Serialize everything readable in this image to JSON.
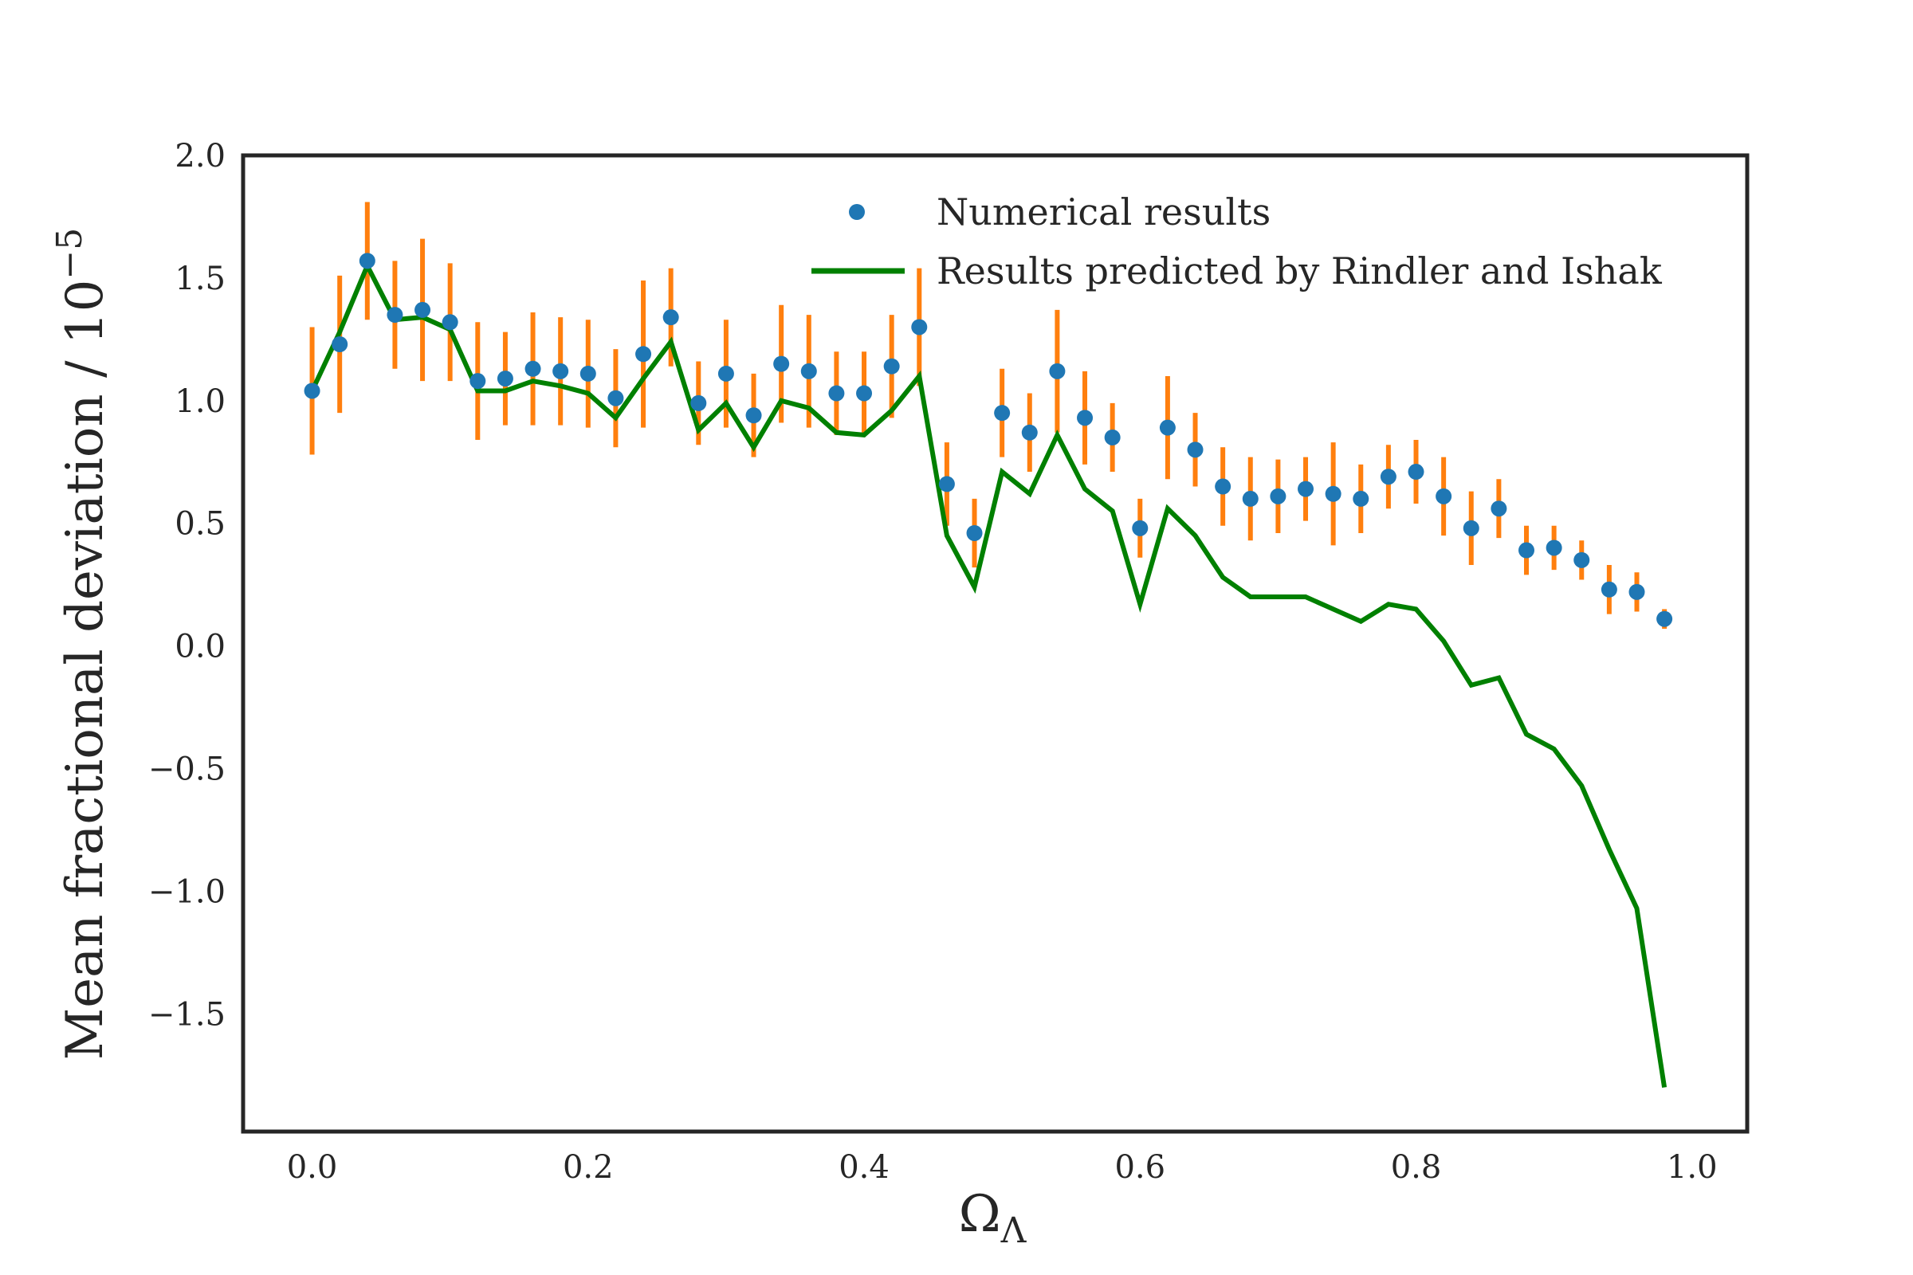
{
  "chart_data": {
    "type": "scatter",
    "title": "",
    "xlabel": "Ω",
    "xlabel_sub": "Λ",
    "ylabel": "Mean fractional deviation / 10",
    "ylabel_exp": "−5",
    "xlim": [
      -0.05,
      1.04
    ],
    "ylim": [
      -1.98,
      2.0
    ],
    "x_ticks": [
      0.0,
      0.2,
      0.4,
      0.6,
      0.8,
      1.0
    ],
    "x_tick_labels": [
      "0.0",
      "0.2",
      "0.4",
      "0.6",
      "0.8",
      "1.0"
    ],
    "y_ticks": [
      2.0,
      1.5,
      1.0,
      0.5,
      0.0,
      -0.5,
      -1.0,
      -1.5
    ],
    "y_tick_labels": [
      "2.0",
      "1.5",
      "1.0",
      "0.5",
      "0.0",
      "−0.5",
      "−1.0",
      "−1.5"
    ],
    "grid": false,
    "legend_position": "top-right",
    "colors": {
      "points": "#1f77b4",
      "errorbars": "#ff7f0e",
      "line": "#008000",
      "axes": "#262626"
    },
    "series": [
      {
        "name": "Numerical results",
        "kind": "points-with-errorbars",
        "x": [
          0.0,
          0.02,
          0.04,
          0.06,
          0.08,
          0.1,
          0.12,
          0.14,
          0.16,
          0.18,
          0.2,
          0.22,
          0.24,
          0.26,
          0.28,
          0.3,
          0.32,
          0.34,
          0.36,
          0.38,
          0.4,
          0.42,
          0.44,
          0.46,
          0.48,
          0.5,
          0.52,
          0.54,
          0.56,
          0.58,
          0.6,
          0.62,
          0.64,
          0.66,
          0.68,
          0.7,
          0.72,
          0.74,
          0.76,
          0.78,
          0.8,
          0.82,
          0.84,
          0.86,
          0.88,
          0.9,
          0.92,
          0.94,
          0.96,
          0.98
        ],
        "y": [
          1.04,
          1.23,
          1.57,
          1.35,
          1.37,
          1.32,
          1.08,
          1.09,
          1.13,
          1.12,
          1.11,
          1.01,
          1.19,
          1.34,
          0.99,
          1.11,
          0.94,
          1.15,
          1.12,
          1.03,
          1.03,
          1.14,
          1.3,
          0.66,
          0.46,
          0.95,
          0.87,
          1.12,
          0.93,
          0.85,
          0.48,
          0.89,
          0.8,
          0.65,
          0.6,
          0.61,
          0.64,
          0.62,
          0.6,
          0.69,
          0.71,
          0.61,
          0.48,
          0.56,
          0.39,
          0.4,
          0.35,
          0.23,
          0.22,
          0.11
        ],
        "yerr": [
          0.26,
          0.28,
          0.24,
          0.22,
          0.29,
          0.24,
          0.24,
          0.19,
          0.23,
          0.22,
          0.22,
          0.2,
          0.3,
          0.2,
          0.17,
          0.22,
          0.17,
          0.24,
          0.23,
          0.17,
          0.17,
          0.21,
          0.24,
          0.17,
          0.14,
          0.18,
          0.16,
          0.25,
          0.19,
          0.14,
          0.12,
          0.21,
          0.15,
          0.16,
          0.17,
          0.15,
          0.13,
          0.21,
          0.14,
          0.13,
          0.13,
          0.16,
          0.15,
          0.12,
          0.1,
          0.09,
          0.08,
          0.1,
          0.08,
          0.04
        ]
      },
      {
        "name": "Results predicted by Rindler and Ishak",
        "kind": "line",
        "x": [
          0.0,
          0.02,
          0.04,
          0.06,
          0.08,
          0.1,
          0.12,
          0.14,
          0.16,
          0.18,
          0.2,
          0.22,
          0.24,
          0.26,
          0.28,
          0.3,
          0.32,
          0.34,
          0.36,
          0.38,
          0.4,
          0.42,
          0.44,
          0.46,
          0.48,
          0.5,
          0.52,
          0.54,
          0.56,
          0.58,
          0.6,
          0.62,
          0.64,
          0.66,
          0.68,
          0.7,
          0.72,
          0.74,
          0.76,
          0.78,
          0.8,
          0.82,
          0.84,
          0.86,
          0.88,
          0.9,
          0.92,
          0.94,
          0.96,
          0.98
        ],
        "y": [
          1.04,
          1.28,
          1.55,
          1.33,
          1.34,
          1.29,
          1.04,
          1.04,
          1.08,
          1.06,
          1.03,
          0.93,
          1.09,
          1.24,
          0.88,
          0.99,
          0.81,
          1.0,
          0.97,
          0.87,
          0.86,
          0.96,
          1.1,
          0.45,
          0.24,
          0.71,
          0.62,
          0.86,
          0.64,
          0.55,
          0.17,
          0.56,
          0.45,
          0.28,
          0.2,
          0.2,
          0.2,
          0.15,
          0.1,
          0.17,
          0.15,
          0.02,
          -0.16,
          -0.13,
          -0.36,
          -0.42,
          -0.57,
          -0.83,
          -1.07,
          -1.8
        ]
      }
    ]
  }
}
